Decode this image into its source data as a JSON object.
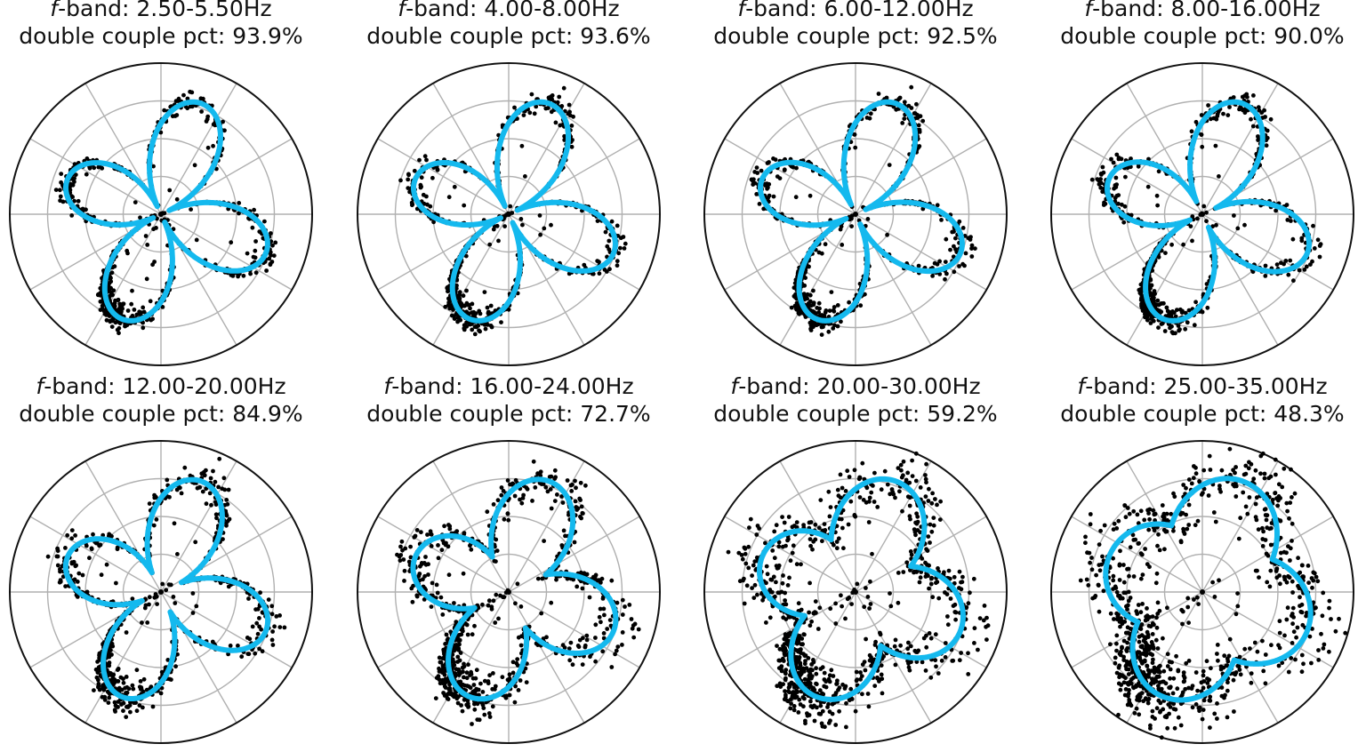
{
  "chart_data": [
    {
      "type": "scatter",
      "polar": true,
      "title_prefix": "f",
      "title_band": "-band: 2.50-5.50Hz",
      "subtitle": "double couple pct: 93.9%",
      "dc_pct": 93.9,
      "band_hz": [
        2.5,
        5.5
      ],
      "rlim": [
        0,
        1
      ],
      "grid": true
    },
    {
      "type": "scatter",
      "polar": true,
      "title_prefix": "f",
      "title_band": "-band: 4.00-8.00Hz",
      "subtitle": "double couple pct: 93.6%",
      "dc_pct": 93.6,
      "band_hz": [
        4.0,
        8.0
      ],
      "rlim": [
        0,
        1
      ],
      "grid": true
    },
    {
      "type": "scatter",
      "polar": true,
      "title_prefix": "f",
      "title_band": "-band: 6.00-12.00Hz",
      "subtitle": "double couple pct: 92.5%",
      "dc_pct": 92.5,
      "band_hz": [
        6.0,
        12.0
      ],
      "rlim": [
        0,
        1
      ],
      "grid": true
    },
    {
      "type": "scatter",
      "polar": true,
      "title_prefix": "f",
      "title_band": "-band: 8.00-16.00Hz",
      "subtitle": "double couple pct: 90.0%",
      "dc_pct": 90.0,
      "band_hz": [
        8.0,
        16.0
      ],
      "rlim": [
        0,
        1
      ],
      "grid": true
    },
    {
      "type": "scatter",
      "polar": true,
      "title_prefix": "f",
      "title_band": "-band: 12.00-20.00Hz",
      "subtitle": "double couple pct: 84.9%",
      "dc_pct": 84.9,
      "band_hz": [
        12.0,
        20.0
      ],
      "rlim": [
        0,
        1
      ],
      "grid": true
    },
    {
      "type": "scatter",
      "polar": true,
      "title_prefix": "f",
      "title_band": "-band: 16.00-24.00Hz",
      "subtitle": "double couple pct: 72.7%",
      "dc_pct": 72.7,
      "band_hz": [
        16.0,
        24.0
      ],
      "rlim": [
        0,
        1
      ],
      "grid": true
    },
    {
      "type": "scatter",
      "polar": true,
      "title_prefix": "f",
      "title_band": "-band: 20.00-30.00Hz",
      "subtitle": "double couple pct: 59.2%",
      "dc_pct": 59.2,
      "band_hz": [
        20.0,
        30.0
      ],
      "rlim": [
        0,
        1
      ],
      "grid": true
    },
    {
      "type": "scatter",
      "polar": true,
      "title_prefix": "f",
      "title_band": "-band: 25.00-35.00Hz",
      "subtitle": "double couple pct: 48.3%",
      "dc_pct": 48.3,
      "band_hz": [
        25.0,
        35.0
      ],
      "rlim": [
        0,
        1
      ],
      "grid": true
    }
  ],
  "colors": {
    "fit_curve": "#14b9ee",
    "observations": "#000000",
    "grid": "#b0b0b0"
  }
}
